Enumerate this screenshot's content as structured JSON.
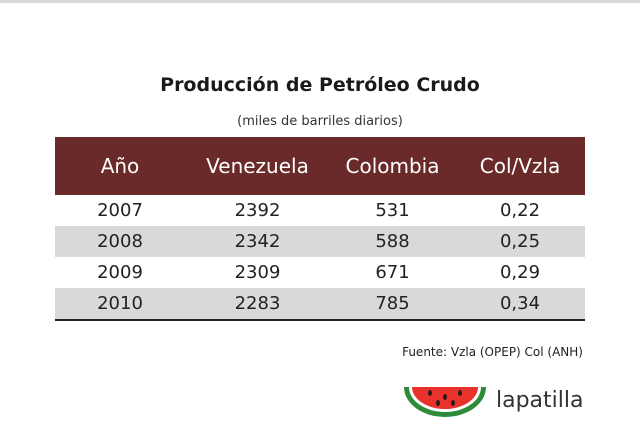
{
  "chart_data": {
    "type": "table",
    "title": "Producción de Petróleo Crudo",
    "subtitle": "(miles de barriles diarios)",
    "columns": [
      "Año",
      "Venezuela",
      "Colombia",
      "Col/Vzla"
    ],
    "rows": [
      [
        "2007",
        "2392",
        "531",
        "0,22"
      ],
      [
        "2008",
        "2342",
        "588",
        "0,25"
      ],
      [
        "2009",
        "2309",
        "671",
        "0,29"
      ],
      [
        "2010",
        "2283",
        "785",
        "0,34"
      ]
    ],
    "source": "Fuente: Vzla (OPEP) Col (ANH)"
  },
  "branding": {
    "logo_text": "lapatilla",
    "logo_icon": "watermelon-slice-icon"
  },
  "colors": {
    "header_bg": "#6b2a2a",
    "row_shade": "#d9d9d9"
  }
}
